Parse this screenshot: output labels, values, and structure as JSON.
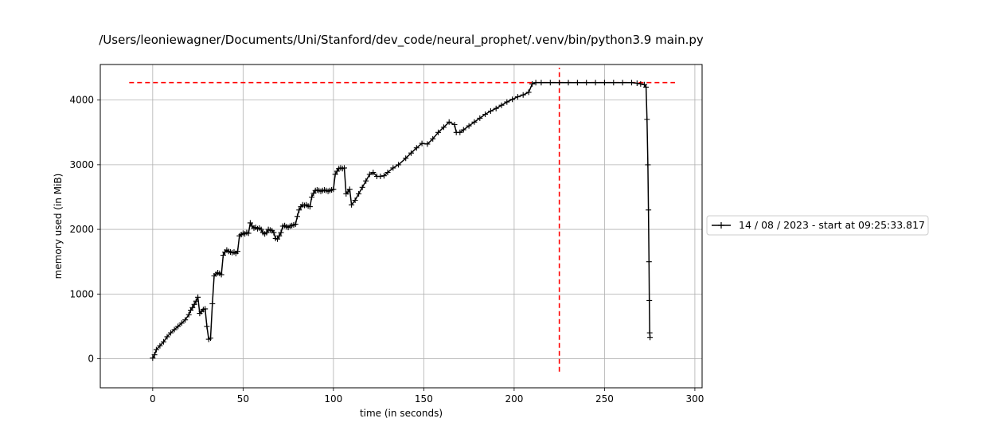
{
  "chart_data": {
    "type": "line",
    "title": "/Users/leoniewagner/Documents/Uni/Stanford/dev_code/neural_prophet/.venv/bin/python3.9 main.py",
    "xlabel": "time (in seconds)",
    "ylabel": "memory used (in MiB)",
    "xlim": [
      -29,
      304
    ],
    "ylim": [
      -450,
      4550
    ],
    "xticks": [
      0,
      50,
      100,
      150,
      200,
      250,
      300
    ],
    "yticks": [
      0,
      1000,
      2000,
      3000,
      4000
    ],
    "xtick_labels": [
      "0",
      "50",
      "100",
      "150",
      "200",
      "250",
      "300"
    ],
    "ytick_labels": [
      "0",
      "1000",
      "2000",
      "3000",
      "4000"
    ],
    "grid": true,
    "legend_position": "outside-right",
    "colors": {
      "series": "#000000",
      "max_marker": "#ff0000",
      "grid": "#b0b0b0"
    },
    "series": [
      {
        "name": "14 / 08 / 2023 - start at 09:25:33.817",
        "marker": "plus",
        "points": [
          [
            0,
            10
          ],
          [
            1,
            60
          ],
          [
            2,
            140
          ],
          [
            4,
            200
          ],
          [
            6,
            260
          ],
          [
            8,
            340
          ],
          [
            10,
            400
          ],
          [
            12,
            450
          ],
          [
            14,
            500
          ],
          [
            16,
            550
          ],
          [
            18,
            600
          ],
          [
            20,
            680
          ],
          [
            21,
            750
          ],
          [
            22,
            790
          ],
          [
            23,
            840
          ],
          [
            24,
            890
          ],
          [
            25,
            950
          ],
          [
            26,
            700
          ],
          [
            27,
            730
          ],
          [
            28,
            760
          ],
          [
            29,
            770
          ],
          [
            30,
            500
          ],
          [
            31,
            300
          ],
          [
            32,
            320
          ],
          [
            33,
            850
          ],
          [
            34,
            1280
          ],
          [
            35,
            1310
          ],
          [
            36,
            1330
          ],
          [
            37,
            1320
          ],
          [
            38,
            1300
          ],
          [
            39,
            1600
          ],
          [
            40,
            1650
          ],
          [
            41,
            1680
          ],
          [
            42,
            1660
          ],
          [
            43,
            1650
          ],
          [
            44,
            1640
          ],
          [
            45,
            1650
          ],
          [
            46,
            1630
          ],
          [
            47,
            1660
          ],
          [
            48,
            1900
          ],
          [
            49,
            1920
          ],
          [
            50,
            1940
          ],
          [
            51,
            1930
          ],
          [
            52,
            1950
          ],
          [
            53,
            1940
          ],
          [
            54,
            2100
          ],
          [
            55,
            2050
          ],
          [
            56,
            2020
          ],
          [
            57,
            2030
          ],
          [
            58,
            2010
          ],
          [
            59,
            2020
          ],
          [
            60,
            2000
          ],
          [
            61,
            1950
          ],
          [
            62,
            1930
          ],
          [
            63,
            1950
          ],
          [
            64,
            2000
          ],
          [
            65,
            1990
          ],
          [
            66,
            1980
          ],
          [
            67,
            1950
          ],
          [
            68,
            1860
          ],
          [
            69,
            1850
          ],
          [
            70,
            1900
          ],
          [
            71,
            1950
          ],
          [
            72,
            2050
          ],
          [
            73,
            2060
          ],
          [
            74,
            2040
          ],
          [
            75,
            2030
          ],
          [
            76,
            2050
          ],
          [
            77,
            2060
          ],
          [
            78,
            2070
          ],
          [
            79,
            2080
          ],
          [
            80,
            2200
          ],
          [
            81,
            2300
          ],
          [
            82,
            2350
          ],
          [
            83,
            2380
          ],
          [
            84,
            2370
          ],
          [
            85,
            2380
          ],
          [
            86,
            2360
          ],
          [
            87,
            2350
          ],
          [
            88,
            2500
          ],
          [
            89,
            2560
          ],
          [
            90,
            2600
          ],
          [
            91,
            2610
          ],
          [
            92,
            2600
          ],
          [
            93,
            2590
          ],
          [
            94,
            2600
          ],
          [
            95,
            2610
          ],
          [
            96,
            2600
          ],
          [
            97,
            2590
          ],
          [
            98,
            2600
          ],
          [
            99,
            2610
          ],
          [
            100,
            2620
          ],
          [
            101,
            2850
          ],
          [
            102,
            2900
          ],
          [
            103,
            2940
          ],
          [
            104,
            2950
          ],
          [
            105,
            2940
          ],
          [
            106,
            2950
          ],
          [
            107,
            2550
          ],
          [
            108,
            2580
          ],
          [
            109,
            2620
          ],
          [
            110,
            2380
          ],
          [
            112,
            2450
          ],
          [
            114,
            2550
          ],
          [
            116,
            2650
          ],
          [
            118,
            2750
          ],
          [
            120,
            2850
          ],
          [
            122,
            2880
          ],
          [
            124,
            2820
          ],
          [
            126,
            2820
          ],
          [
            128,
            2830
          ],
          [
            130,
            2880
          ],
          [
            133,
            2950
          ],
          [
            136,
            3000
          ],
          [
            140,
            3100
          ],
          [
            143,
            3180
          ],
          [
            146,
            3260
          ],
          [
            149,
            3330
          ],
          [
            152,
            3320
          ],
          [
            155,
            3400
          ],
          [
            158,
            3500
          ],
          [
            161,
            3580
          ],
          [
            164,
            3660
          ],
          [
            167,
            3620
          ],
          [
            168,
            3500
          ],
          [
            170,
            3500
          ],
          [
            172,
            3540
          ],
          [
            175,
            3600
          ],
          [
            178,
            3660
          ],
          [
            181,
            3720
          ],
          [
            184,
            3780
          ],
          [
            187,
            3830
          ],
          [
            190,
            3870
          ],
          [
            193,
            3920
          ],
          [
            196,
            3970
          ],
          [
            199,
            4010
          ],
          [
            202,
            4050
          ],
          [
            205,
            4080
          ],
          [
            208,
            4120
          ],
          [
            210,
            4250
          ],
          [
            212,
            4270
          ],
          [
            215,
            4270
          ],
          [
            220,
            4270
          ],
          [
            225,
            4270
          ],
          [
            230,
            4270
          ],
          [
            235,
            4270
          ],
          [
            240,
            4270
          ],
          [
            245,
            4270
          ],
          [
            250,
            4270
          ],
          [
            255,
            4270
          ],
          [
            260,
            4270
          ],
          [
            265,
            4270
          ],
          [
            268,
            4260
          ],
          [
            270,
            4250
          ],
          [
            272,
            4240
          ],
          [
            273,
            4200
          ],
          [
            273.5,
            3700
          ],
          [
            274,
            3000
          ],
          [
            274.3,
            2300
          ],
          [
            274.6,
            1500
          ],
          [
            274.8,
            900
          ],
          [
            275,
            400
          ],
          [
            275.2,
            330
          ]
        ]
      }
    ],
    "max_memory_line": {
      "y": 4270,
      "xmin": -13,
      "xmax": 289
    },
    "max_time_line": {
      "x": 225,
      "ymin": -200,
      "ymax": 4500
    }
  }
}
